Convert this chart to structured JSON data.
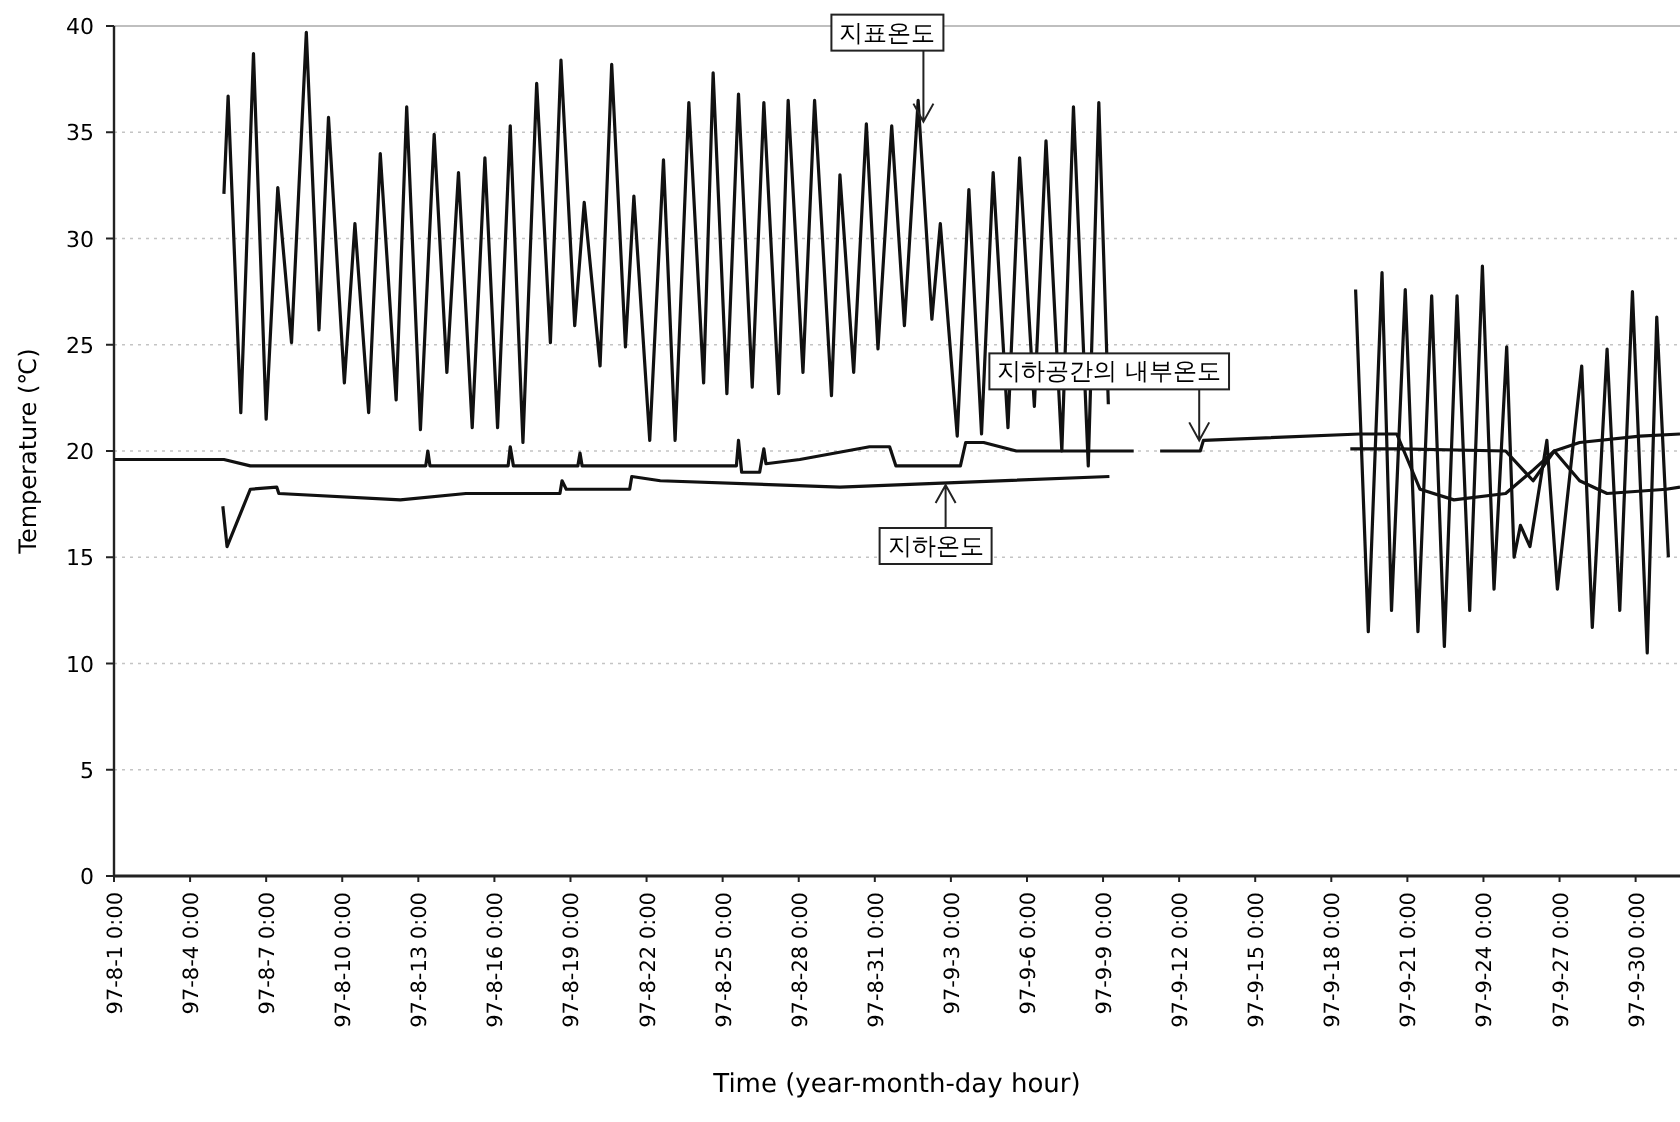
{
  "chart_data": {
    "type": "line",
    "xlabel": "Time (year-month-day hour)",
    "ylabel": "Temperature (℃)",
    "xlim": [
      "--08-01",
      "--10-01T18:00"
    ],
    "ylim": [
      0,
      40
    ],
    "yticks": [
      0,
      5,
      10,
      15,
      20,
      25,
      30,
      35,
      40
    ],
    "grid": "y",
    "xticks": [
      {
        "value": "--08-01",
        "label": "97-8-1 0:00"
      },
      {
        "value": "--08-04",
        "label": "97-8-4 0:00"
      },
      {
        "value": "--08-07",
        "label": "97-8-7 0:00"
      },
      {
        "value": "--08-10",
        "label": "97-8-10 0:00"
      },
      {
        "value": "--08-13",
        "label": "97-8-13 0:00"
      },
      {
        "value": "--08-16",
        "label": "97-8-16 0:00"
      },
      {
        "value": "--08-19",
        "label": "97-8-19 0:00"
      },
      {
        "value": "--08-22",
        "label": "97-8-22 0:00"
      },
      {
        "value": "--08-25",
        "label": "97-8-25 0:00"
      },
      {
        "value": "--08-28",
        "label": "97-8-28 0:00"
      },
      {
        "value": "--08-31",
        "label": "97-8-31 0:00"
      },
      {
        "value": "--09-03",
        "label": "97-9-3 0:00"
      },
      {
        "value": "--09-06",
        "label": "97-9-6 0:00"
      },
      {
        "value": "--09-09",
        "label": "97-9-9 0:00"
      },
      {
        "value": "--09-12",
        "label": "97-9-12 0:00"
      },
      {
        "value": "--09-15",
        "label": "97-9-15 0:00"
      },
      {
        "value": "--09-18",
        "label": "97-9-18 0:00"
      },
      {
        "value": "--09-21",
        "label": "97-9-21 0:00"
      },
      {
        "value": "--09-24",
        "label": "97-9-24 0:00"
      },
      {
        "value": "--09-27",
        "label": "97-9-27 0:00"
      },
      {
        "value": "--09-30",
        "label": "97-9-30 0:00"
      }
    ],
    "series": [
      {
        "color": "#111111",
        "x": [
          "--08-05T08:00",
          "--08-05T12:00",
          "--08-06T00:00",
          "--08-06T12:00",
          "--08-07T00:00",
          "--08-07T11:00",
          "--08-08T00:00",
          "--08-08T14:00",
          "--08-09T02:00",
          "--08-09T11:00",
          "--08-10T02:00",
          "--08-10T12:00",
          "--08-11T01:00",
          "--08-11T12:00",
          "--08-12T03:00",
          "--08-12T13:00",
          "--08-13T02:00",
          "--08-13T15:00",
          "--08-14T03:00",
          "--08-14T14:00",
          "--08-15T03:00",
          "--08-15T15:00",
          "--08-16T03:00",
          "--08-16T15:00",
          "--08-17T03:00",
          "--08-17T16:00",
          "--08-18T05:00",
          "--08-18T15:00",
          "--08-19T04:00",
          "--08-19T13:00",
          "--08-20T04:00",
          "--08-20T15:00",
          "--08-21T04:00",
          "--08-21T12:00",
          "--08-22T03:00",
          "--08-22T16:00",
          "--08-23T03:00",
          "--08-23T16:00",
          "--08-24T06:00",
          "--08-24T15:00",
          "--08-25T04:00",
          "--08-25T15:00",
          "--08-26T04:00",
          "--08-26T15:00",
          "--08-27T05:00",
          "--08-27T14:00",
          "--08-28T04:00",
          "--08-28T15:00",
          "--08-29T07:00",
          "--08-29T15:00",
          "--08-30T04:00",
          "--08-30T16:00",
          "--08-31T03:00",
          "--08-31T16:00",
          "--09-01T04:00",
          "--09-01T17:00",
          "--09-02T06:00",
          "--09-02T14:00",
          "--09-03T06:00",
          "--09-03T17:00",
          "--09-04T05:00",
          "--09-04T16:00",
          "--09-05T06:00",
          "--09-05T17:00",
          "--09-06T07:00",
          "--09-06T18:00",
          "--09-07T09:00",
          "--09-07T20:00",
          "--09-08T10:00",
          "--09-08T20:00",
          "--09-09T05:00"
        ],
        "values": [
          32.1,
          36.7,
          21.8,
          38.7,
          21.5,
          32.4,
          25.1,
          39.7,
          25.7,
          35.7,
          23.2,
          30.7,
          21.8,
          34.0,
          22.4,
          36.2,
          21.0,
          34.9,
          23.7,
          33.1,
          21.1,
          33.8,
          21.1,
          35.3,
          20.4,
          37.3,
          25.1,
          38.4,
          25.9,
          31.7,
          24.0,
          38.2,
          24.9,
          32.0,
          20.5,
          33.7,
          20.5,
          36.4,
          23.2,
          37.8,
          22.7,
          36.8,
          23.0,
          36.4,
          22.7,
          36.5,
          23.7,
          36.5,
          22.6,
          33.0,
          23.7,
          35.4,
          24.8,
          35.3,
          25.9,
          36.5,
          26.2,
          30.7,
          20.7,
          32.3,
          20.8,
          33.1,
          21.1,
          33.8,
          22.1,
          34.6,
          20.0,
          36.2,
          19.3,
          36.4,
          22.2
        ]
      },
      {
        "color": "#111111",
        "x": [
          "--09-18T23:00",
          "--09-19T11:00",
          "--09-20T00:00",
          "--09-20T09:00",
          "--09-20T22:00",
          "--09-21T10:00",
          "--09-21T23:00",
          "--09-22T11:00",
          "--09-22T23:00",
          "--09-23T11:00",
          "--09-23T23:00",
          "--09-24T10:00",
          "--09-24T22:00",
          "--09-25T05:00",
          "--09-25T11:00",
          "--09-25T20:00",
          "--09-26T12:00",
          "--09-26T22:00",
          "--09-27T21:00",
          "--09-28T07:00",
          "--09-28T21:00",
          "--09-29T09:00",
          "--09-29T21:00",
          "--09-30T11:00",
          "--09-30T20:00",
          "--10-01T07:00"
        ],
        "values": [
          27.6,
          11.5,
          28.4,
          12.5,
          27.6,
          11.5,
          27.3,
          10.8,
          27.3,
          12.5,
          28.7,
          13.5,
          24.9,
          15.0,
          16.5,
          15.5,
          20.5,
          13.5,
          24.0,
          11.7,
          24.8,
          12.5,
          27.5,
          10.5,
          26.3,
          15.0
        ]
      },
      {
        "color": "#111111",
        "x": [
          "--08-01T00:00",
          "--08-05T08:00",
          "--08-06T09:00",
          "--08-13T07:00",
          "--08-13T09:00",
          "--08-13T11:00",
          "--08-16T13:00",
          "--08-16T15:00",
          "--08-16T18:00",
          "--08-19T07:00",
          "--08-19T09:00",
          "--08-19T11:00",
          "--08-25T13:00",
          "--08-25T15:00",
          "--08-25T18:00",
          "--08-26T11:00",
          "--08-26T15:00",
          "--08-26T17:00",
          "--08-28T01:00",
          "--08-30T19:00",
          "--08-31T14:00",
          "--08-31T20:00",
          "--09-03T09:00",
          "--09-03T14:00",
          "--09-04T07:00",
          "--09-05T14:00",
          "--09-10T05:00"
        ],
        "values": [
          19.6,
          19.6,
          19.3,
          19.3,
          20.0,
          19.3,
          19.3,
          20.2,
          19.3,
          19.3,
          19.9,
          19.3,
          19.3,
          20.5,
          19.0,
          19.0,
          20.1,
          19.4,
          19.6,
          20.2,
          20.2,
          19.3,
          19.3,
          20.4,
          20.4,
          20.0,
          20.0
        ]
      },
      {
        "color": "#111111",
        "x": [
          "--09-11T06:00",
          "--09-12T20:00",
          "--09-12T23:00",
          "--09-19T03:00",
          "--09-20T14:00",
          "--09-21T12:00",
          "--09-22T20:00",
          "--09-24T21:00",
          "--09-25T23:00",
          "--09-26T19:00",
          "--09-27T19:00",
          "--09-28T21:00",
          "--10-01T05:00",
          "--10-01T18:00"
        ],
        "values": [
          20.0,
          20.0,
          20.5,
          20.8,
          20.8,
          18.2,
          17.7,
          18.0,
          19.1,
          20.0,
          18.6,
          18.0,
          18.2,
          18.3
        ]
      },
      {
        "color": "#111111",
        "x": [
          "--08-05T07:00",
          "--08-05T11:00",
          "--08-06T09:00",
          "--08-07T10:00",
          "--08-07T12:00",
          "--08-12T07:00",
          "--08-14T21:00",
          "--08-18T14:00",
          "--08-18T16:00",
          "--08-18T20:00",
          "--08-21T08:00",
          "--08-21T10:00",
          "--08-22T13:00",
          "--08-29T15:00",
          "--09-09T06:00"
        ],
        "values": [
          17.4,
          15.5,
          18.2,
          18.3,
          18.0,
          17.7,
          18.0,
          18.0,
          18.6,
          18.2,
          18.2,
          18.8,
          18.6,
          18.3,
          18.8
        ]
      },
      {
        "color": "#111111",
        "x": [
          "--09-18T18:00",
          "--09-20T17:00",
          "--09-24T21:00",
          "--09-25T23:00",
          "--09-26T19:00",
          "--09-27T19:00",
          "--09-30T04:00",
          "--10-01T18:00"
        ],
        "values": [
          20.1,
          20.1,
          20.0,
          18.6,
          20.0,
          20.4,
          20.7,
          20.8
        ]
      }
    ],
    "annotations": [
      {
        "text": "지표온도",
        "x": "--09-01T22:00",
        "y": 35.5
      },
      {
        "text": "지하공간의 내부온도",
        "x": "--09-12T19:00",
        "y": 20.5
      },
      {
        "text": "지하온도",
        "x": "--09-02T19:00",
        "y": 18.4
      }
    ]
  }
}
